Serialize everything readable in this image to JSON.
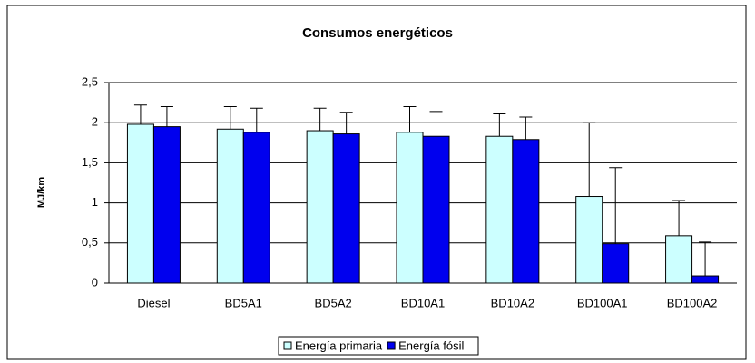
{
  "chart_data": {
    "type": "bar",
    "title": "Consumos energéticos",
    "y_label": "MJ/km",
    "categories": [
      "Diesel",
      "BD5A1",
      "BD5A2",
      "BD10A1",
      "BD10A2",
      "BD100A1",
      "BD100A2"
    ],
    "series": [
      {
        "name": "Energía primaria",
        "color": "#ccffff",
        "values": [
          1.98,
          1.92,
          1.9,
          1.88,
          1.83,
          1.08,
          0.59
        ],
        "errors": [
          0.24,
          0.28,
          0.28,
          0.32,
          0.28,
          0.92,
          0.44
        ]
      },
      {
        "name": "Energía fósil",
        "color": "#0000ee",
        "values": [
          1.95,
          1.88,
          1.86,
          1.83,
          1.79,
          0.49,
          0.09
        ],
        "errors": [
          0.25,
          0.3,
          0.27,
          0.31,
          0.28,
          0.95,
          0.42
        ]
      }
    ],
    "ylim": [
      0,
      2.5
    ],
    "yticks": [
      0,
      {
        "value": 0.5,
        "label": "0,5"
      },
      1,
      {
        "value": 1.5,
        "label": "1,5"
      },
      2,
      {
        "value": 2.5,
        "label": "2,5"
      }
    ],
    "grid": true,
    "legend": "bottom"
  }
}
